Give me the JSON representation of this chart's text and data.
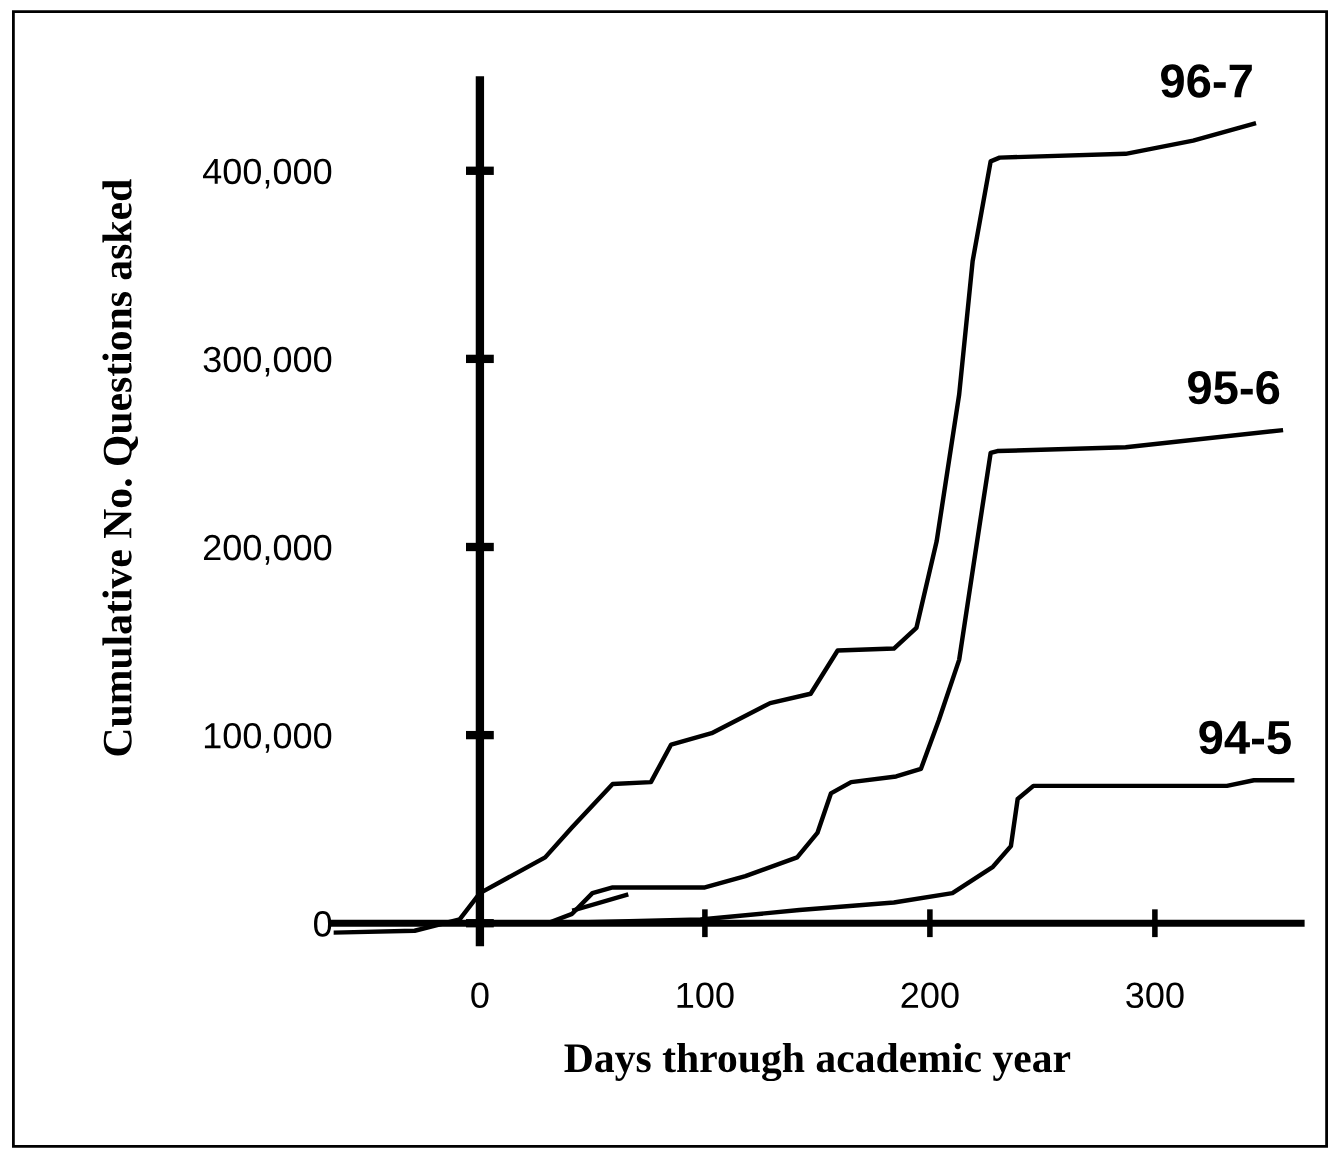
{
  "chart_data": {
    "type": "line",
    "xlabel": "Days through academic year",
    "ylabel": "Cumulative No. Questions asked",
    "xlim": [
      -65,
      365
    ],
    "ylim": [
      -10000,
      448000
    ],
    "xticks": [
      0,
      100,
      200,
      300
    ],
    "yticks": [
      0,
      {
        "value": 100000,
        "label": "100,000"
      },
      {
        "value": 200000,
        "label": "200,000"
      },
      {
        "value": 300000,
        "label": "300,000"
      },
      {
        "value": 400000,
        "label": "400,000"
      }
    ],
    "series": [
      {
        "name": "96-7",
        "color": "#000000",
        "x": [
          -65,
          -29,
          -9,
          0,
          29,
          41,
          59,
          76,
          85,
          103,
          129,
          147,
          159,
          184,
          194,
          203,
          213,
          219,
          227,
          231,
          287,
          317,
          344
        ],
        "values": [
          -5000,
          -4000,
          2000,
          16000,
          35000,
          51000,
          74000,
          75000,
          95000,
          101000,
          117000,
          122000,
          145000,
          146000,
          157000,
          203000,
          281000,
          352000,
          405000,
          407000,
          409000,
          416000,
          425000
        ]
      },
      {
        "name": "95-6",
        "color": "#000000",
        "x": [
          30,
          41,
          50,
          59,
          100,
          118,
          141,
          150,
          156,
          165,
          185,
          196,
          204,
          213,
          222,
          227,
          230,
          287,
          356
        ],
        "values": [
          0,
          5000,
          16000,
          19000,
          19000,
          25000,
          35000,
          48000,
          69000,
          75000,
          78000,
          82000,
          108000,
          140000,
          211000,
          250000,
          251000,
          253000,
          262000
        ]
      },
      {
        "name": "94-5",
        "color": "#000000",
        "x": [
          30,
          98,
          142,
          184,
          210,
          228,
          236,
          239,
          246,
          332,
          344,
          361
        ],
        "values": [
          0,
          2000,
          7000,
          11000,
          16000,
          30000,
          41000,
          66000,
          73000,
          73000,
          76000,
          76000
        ]
      },
      {
        "color": "#000000",
        "x": [
          42,
          65
        ],
        "values": [
          7000,
          15000
        ]
      }
    ],
    "line_style": "solid",
    "marker": "none"
  }
}
